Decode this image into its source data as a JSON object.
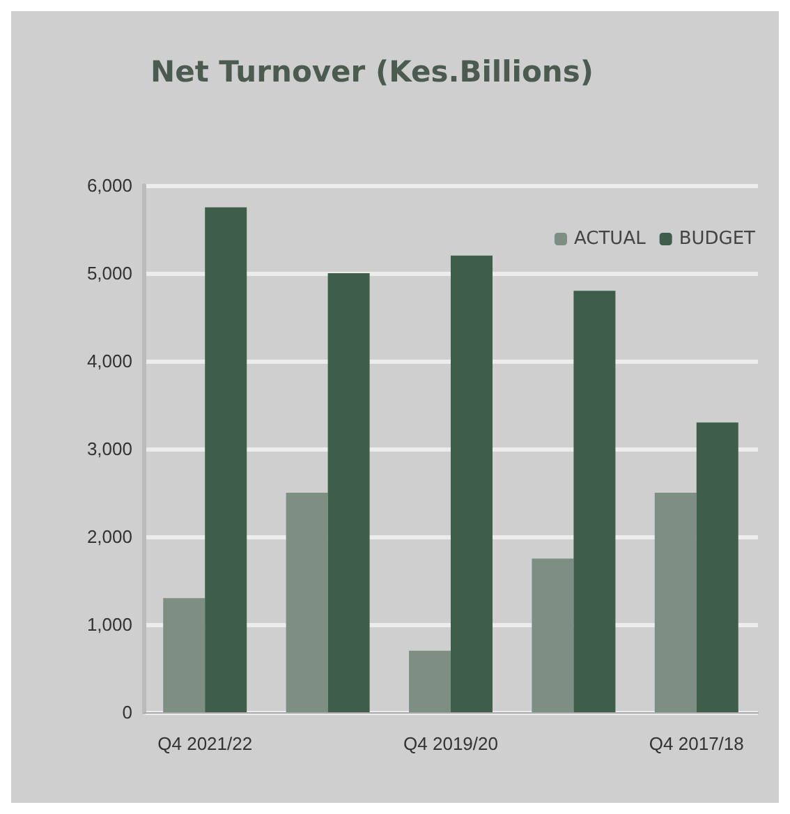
{
  "chart_data": {
    "type": "bar",
    "title": "Net Turnover (Kes.Billions)",
    "categories": [
      "Q4 2021/22",
      null,
      "Q4 2019/20",
      null,
      "Q4 2017/18"
    ],
    "series": [
      {
        "name": "ACTUAL",
        "color": "#7d8f83",
        "values": [
          1300,
          2500,
          700,
          1750,
          2500
        ]
      },
      {
        "name": "BUDGET",
        "color": "#3e5e4b",
        "values": [
          5750,
          5000,
          5200,
          4800,
          3300
        ]
      }
    ],
    "ylim": [
      0,
      6000
    ],
    "yticks": [
      {
        "value": 0,
        "label": "0"
      },
      {
        "value": 1000,
        "label": "1,000"
      },
      {
        "value": 2000,
        "label": "2,000"
      },
      {
        "value": 3000,
        "label": "3,000"
      },
      {
        "value": 4000,
        "label": "4,000"
      },
      {
        "value": 5000,
        "label": "5,000"
      },
      {
        "value": 6000,
        "label": "6,000"
      }
    ],
    "grid": "y",
    "legend": "top right"
  }
}
